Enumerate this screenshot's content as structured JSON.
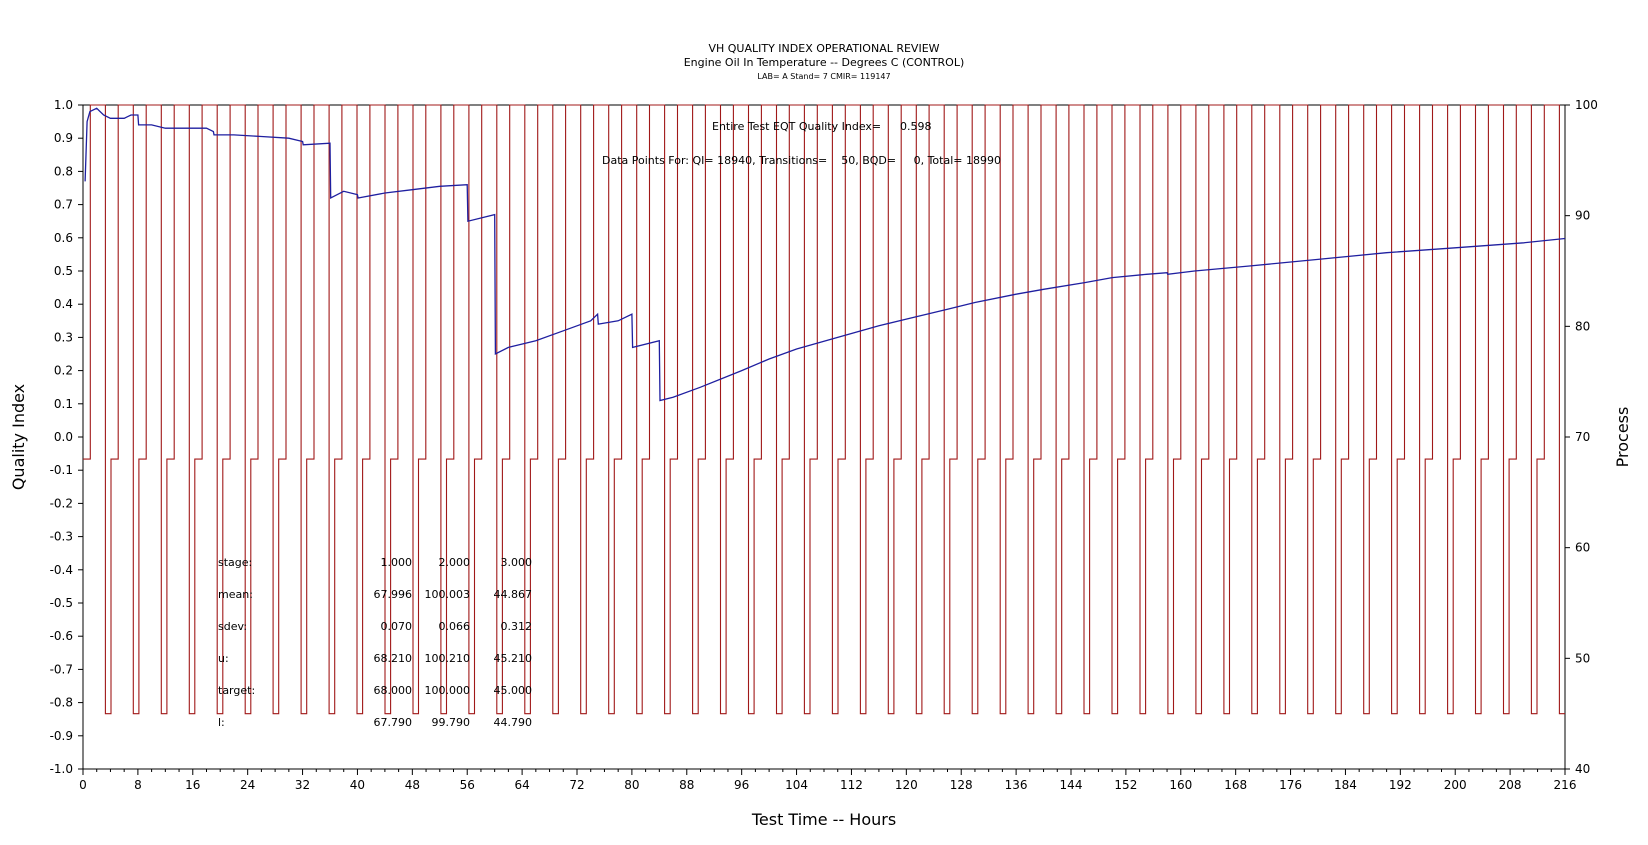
{
  "chart_data": {
    "type": "line",
    "title": "VH QUALITY INDEX OPERATIONAL REVIEW",
    "subtitle": "Engine Oil In Temperature -- Degrees C (CONTROL)",
    "subtitle2": "LAB= A Stand= 7 CMIR= 119147",
    "xlabel": "Test Time -- Hours",
    "ylabel": "Quality Index",
    "y2label": "Process",
    "xlim": [
      0,
      216
    ],
    "ylim": [
      -1.0,
      1.0
    ],
    "y2lim": [
      40,
      100
    ],
    "x_ticks": [
      "0",
      "8",
      "16",
      "24",
      "32",
      "40",
      "48",
      "56",
      "64",
      "72",
      "80",
      "88",
      "96",
      "104",
      "112",
      "120",
      "128",
      "136",
      "144",
      "152",
      "160",
      "168",
      "176",
      "184",
      "192",
      "200",
      "208",
      "216"
    ],
    "y_ticks": [
      "1.0",
      "0.9",
      "0.8",
      "0.7",
      "0.6",
      "0.5",
      "0.4",
      "0.3",
      "0.2",
      "0.1",
      "0.0",
      "-0.1",
      "-0.2",
      "-0.3",
      "-0.4",
      "-0.5",
      "-0.6",
      "-0.7",
      "-0.8",
      "-0.9",
      "-1.0"
    ],
    "y2_ticks": [
      "100",
      "90",
      "80",
      "70",
      "60",
      "50",
      "40"
    ],
    "colors": {
      "quality_index": "#1f1fa0",
      "process": "#a01818"
    },
    "annotations": {
      "eqi_label": "Entire Test EQT Quality Index=",
      "eqi_value": "0.598",
      "points_text": "Data Points For: QI= 18940, Transitions=    50, BQD=     0, Total= 18990"
    },
    "stats": {
      "headers": [
        "stage:",
        "1.000",
        "2.000",
        "3.000"
      ],
      "rows": [
        [
          "mean:",
          "67.996",
          "100.003",
          "44.867"
        ],
        [
          "sdev:",
          "0.070",
          "0.066",
          "0.312"
        ],
        [
          "u:",
          "68.210",
          "100.210",
          "45.210"
        ],
        [
          "target:",
          "68.000",
          "100.000",
          "45.000"
        ],
        [
          "l:",
          "67.790",
          "99.790",
          "44.790"
        ]
      ]
    },
    "series": [
      {
        "axis": "left",
        "x": [
          0.3,
          0.6,
          1,
          2,
          3,
          4,
          5,
          6,
          7,
          8,
          8.1,
          10,
          12,
          14,
          16,
          18,
          19,
          19.1,
          22,
          26,
          30,
          32,
          32.1,
          36,
          36.1,
          38,
          40,
          40.1,
          44,
          48,
          52,
          56,
          56.1,
          60,
          60.1,
          62,
          66,
          70,
          74,
          75,
          75.1,
          78,
          80,
          80.1,
          84,
          84.1,
          86,
          90,
          96,
          100,
          104,
          110,
          116,
          120,
          126,
          130,
          136,
          140,
          146,
          150,
          155,
          158,
          158.1,
          162,
          170,
          180,
          190,
          200,
          210,
          216
        ],
        "y": [
          0.77,
          0.95,
          0.98,
          0.99,
          0.97,
          0.96,
          0.96,
          0.96,
          0.97,
          0.97,
          0.94,
          0.94,
          0.93,
          0.93,
          0.93,
          0.93,
          0.92,
          0.91,
          0.91,
          0.905,
          0.9,
          0.89,
          0.88,
          0.885,
          0.72,
          0.74,
          0.73,
          0.72,
          0.735,
          0.745,
          0.755,
          0.76,
          0.65,
          0.67,
          0.25,
          0.27,
          0.29,
          0.32,
          0.35,
          0.37,
          0.34,
          0.35,
          0.37,
          0.27,
          0.29,
          0.11,
          0.12,
          0.15,
          0.2,
          0.235,
          0.265,
          0.3,
          0.335,
          0.355,
          0.385,
          0.405,
          0.43,
          0.445,
          0.465,
          0.48,
          0.49,
          0.495,
          0.49,
          0.5,
          0.515,
          0.535,
          0.555,
          0.57,
          0.585,
          0.598
        ]
      },
      {
        "axis": "right",
        "kind": "cyclic_process",
        "cycles": 53,
        "levels": [
          68,
          100,
          45
        ],
        "fractions": [
          0.26,
          0.54,
          0.2
        ]
      }
    ]
  }
}
